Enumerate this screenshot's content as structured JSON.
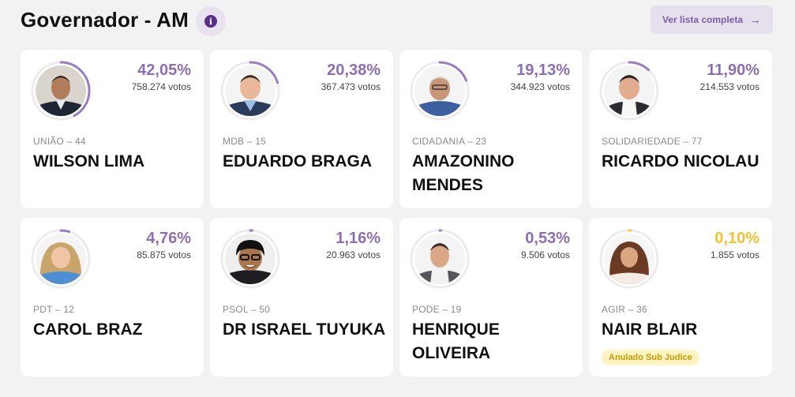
{
  "header": {
    "title": "Governador - AM",
    "info_icon": "i",
    "list_button": "Ver lista completa",
    "arrow_icon": "→"
  },
  "colors": {
    "accent": "#8c6fb0",
    "ring": "#9a7fc0",
    "ring_track": "#ececec",
    "subjudice": "#f2c230"
  },
  "candidates": [
    {
      "pct": "42,05%",
      "votes": "758.274 votos",
      "party": "UNIÃO – 44",
      "name": "WILSON LIMA",
      "share": 0.4205
    },
    {
      "pct": "20,38%",
      "votes": "367.473 votos",
      "party": "MDB – 15",
      "name": "EDUARDO BRAGA",
      "share": 0.2038
    },
    {
      "pct": "19,13%",
      "votes": "344.923 votos",
      "party": "CIDADANIA – 23",
      "name": "AMAZONINO MENDES",
      "share": 0.1913
    },
    {
      "pct": "11,90%",
      "votes": "214.553 votos",
      "party": "SOLIDARIEDADE – 77",
      "name": "RICARDO NICOLAU",
      "share": 0.119
    },
    {
      "pct": "4,76%",
      "votes": "85.875 votos",
      "party": "PDT – 12",
      "name": "CAROL BRAZ",
      "share": 0.0476
    },
    {
      "pct": "1,16%",
      "votes": "20.963 votos",
      "party": "PSOL – 50",
      "name": "DR ISRAEL TUYUKA",
      "share": 0.0116
    },
    {
      "pct": "0,53%",
      "votes": "9.506 votos",
      "party": "PODE – 19",
      "name": "HENRIQUE OLIVEIRA",
      "share": 0.0053
    },
    {
      "pct": "0,10%",
      "votes": "1.855 votos",
      "party": "AGIR – 36",
      "name": "NAIR BLAIR",
      "share": 0.001,
      "badge": "Anulado Sub Judice"
    }
  ]
}
